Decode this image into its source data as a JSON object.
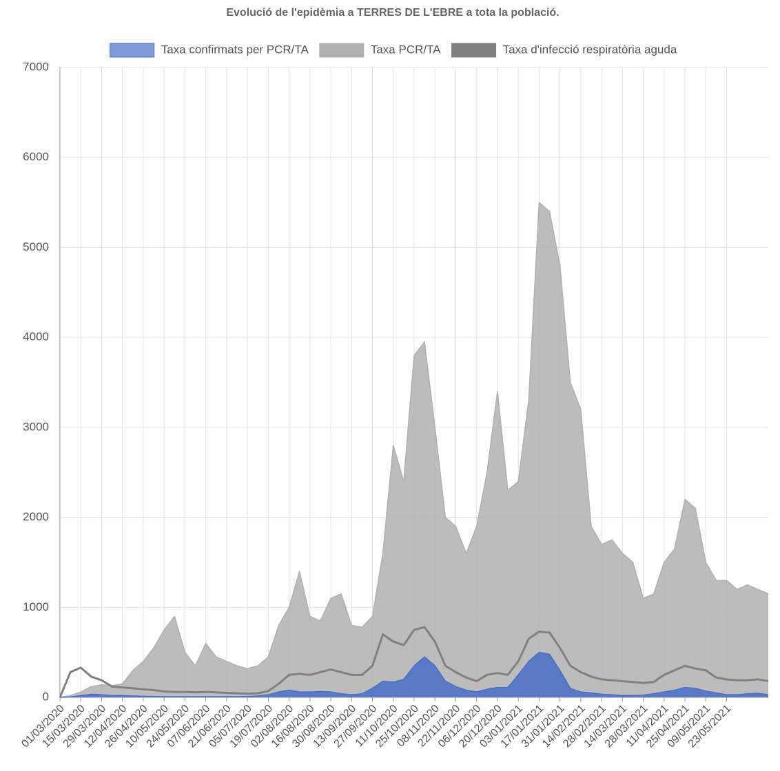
{
  "chart_data": {
    "type": "area",
    "title": "Evolució de l'epidèmia a TERRES DE L'EBRE a tota la població.",
    "categories": [
      "01/03/2020",
      null,
      "15/03/2020",
      null,
      "29/03/2020",
      null,
      "12/04/2020",
      null,
      "26/04/2020",
      null,
      "10/05/2020",
      null,
      "24/05/2020",
      null,
      "07/06/2020",
      null,
      "21/06/2020",
      null,
      "05/07/2020",
      null,
      "19/07/2020",
      null,
      "02/08/2020",
      null,
      "16/08/2020",
      null,
      "30/08/2020",
      null,
      "13/09/2020",
      null,
      "27/09/2020",
      null,
      "11/10/2020",
      null,
      "25/10/2020",
      null,
      "08/11/2020",
      null,
      "22/11/2020",
      null,
      "06/12/2020",
      null,
      "20/12/2020",
      null,
      "03/01/2021",
      null,
      "17/01/2021",
      null,
      "31/01/2021",
      null,
      "14/02/2021",
      null,
      "28/02/2021",
      null,
      "14/03/2021",
      null,
      "28/03/2021",
      null,
      "11/04/2021",
      null,
      "25/04/2021",
      null,
      "09/05/2021",
      null,
      "23/05/2021",
      null,
      null,
      null,
      null
    ],
    "series": [
      {
        "name": "Taxa PCR/TA",
        "color": "#b0b0b0",
        "fill": true,
        "values": [
          0,
          20,
          60,
          120,
          140,
          130,
          150,
          300,
          400,
          550,
          750,
          900,
          500,
          350,
          600,
          450,
          400,
          350,
          320,
          350,
          450,
          800,
          1000,
          1400,
          900,
          850,
          1100,
          1150,
          800,
          780,
          900,
          1600,
          2800,
          2400,
          3800,
          3950,
          3000,
          2000,
          1900,
          1600,
          1900,
          2500,
          3400,
          2300,
          2400,
          3300,
          5500,
          5400,
          4800,
          3500,
          3200,
          1900,
          1700,
          1750,
          1600,
          1500,
          1100,
          1150,
          1500,
          1650,
          2200,
          2100,
          1500,
          1300,
          1300,
          1200,
          1250,
          1200,
          1150
        ]
      },
      {
        "name": "Taxa confirmats per PCR/TA",
        "color": "#4a6fc7",
        "fill": true,
        "values": [
          0,
          5,
          20,
          35,
          30,
          20,
          20,
          15,
          12,
          10,
          8,
          8,
          8,
          8,
          8,
          8,
          8,
          8,
          10,
          15,
          30,
          60,
          80,
          60,
          60,
          65,
          60,
          40,
          30,
          40,
          100,
          180,
          170,
          200,
          350,
          450,
          350,
          180,
          120,
          80,
          60,
          90,
          110,
          110,
          250,
          400,
          500,
          480,
          300,
          100,
          60,
          50,
          35,
          30,
          20,
          20,
          25,
          40,
          60,
          80,
          110,
          100,
          70,
          50,
          30,
          30,
          40,
          45,
          30
        ]
      },
      {
        "name": "Taxa d'infecció respiratòria aguda",
        "color": "#808080",
        "fill": false,
        "values": [
          0,
          280,
          330,
          230,
          190,
          120,
          110,
          100,
          90,
          80,
          65,
          60,
          60,
          55,
          60,
          55,
          50,
          45,
          40,
          45,
          70,
          150,
          250,
          260,
          250,
          280,
          310,
          280,
          250,
          250,
          350,
          700,
          620,
          580,
          750,
          780,
          620,
          350,
          280,
          220,
          180,
          250,
          270,
          250,
          400,
          650,
          730,
          720,
          550,
          350,
          280,
          230,
          200,
          190,
          180,
          170,
          160,
          170,
          250,
          300,
          350,
          320,
          300,
          220,
          200,
          190,
          190,
          200,
          180
        ]
      }
    ],
    "legend_order": [
      1,
      0,
      2
    ],
    "ylim": [
      0,
      7000
    ],
    "yticks": [
      0,
      1000,
      2000,
      3000,
      4000,
      5000,
      6000,
      7000
    ],
    "grid": true
  }
}
